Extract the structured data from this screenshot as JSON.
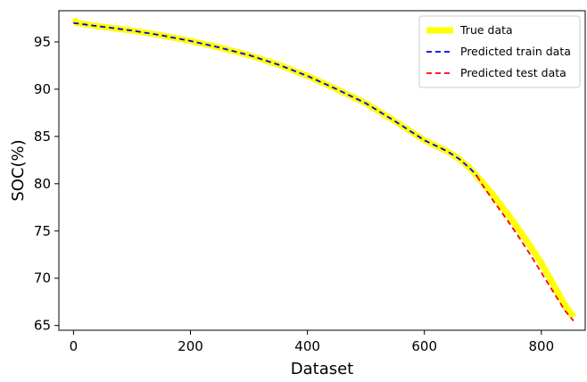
{
  "chart_data": {
    "type": "line",
    "xlabel": "Dataset",
    "ylabel": "SOC(%)",
    "xlim": [
      -25,
      875
    ],
    "ylim": [
      64.5,
      98.3
    ],
    "xticks": [
      0,
      200,
      400,
      600,
      800
    ],
    "yticks": [
      65,
      70,
      75,
      80,
      85,
      90,
      95
    ],
    "grid": false,
    "legend_position": "top-right",
    "series": [
      {
        "name": "True data",
        "color": "#ffff00",
        "style": "solid-thick",
        "x": [
          0,
          5,
          50,
          100,
          150,
          200,
          250,
          300,
          350,
          400,
          450,
          500,
          550,
          600,
          640,
          660,
          680,
          700,
          720,
          740,
          760,
          780,
          800,
          820,
          840,
          855
        ],
        "y": [
          97.4,
          97.0,
          96.6,
          96.2,
          95.7,
          95.1,
          94.4,
          93.6,
          92.6,
          91.4,
          90.0,
          88.5,
          86.6,
          84.6,
          83.4,
          82.6,
          81.5,
          80.1,
          78.6,
          77.0,
          75.3,
          73.5,
          71.6,
          69.4,
          67.2,
          65.9
        ]
      },
      {
        "name": "Predicted train data",
        "color": "#0000ff",
        "style": "dashed",
        "x": [
          0,
          50,
          100,
          150,
          200,
          250,
          300,
          350,
          400,
          450,
          500,
          550,
          600,
          640,
          660,
          680,
          690
        ],
        "y": [
          97.0,
          96.6,
          96.2,
          95.7,
          95.1,
          94.4,
          93.6,
          92.6,
          91.4,
          90.0,
          88.5,
          86.6,
          84.6,
          83.4,
          82.6,
          81.5,
          80.8
        ]
      },
      {
        "name": "Predicted test data",
        "color": "#ff0000",
        "style": "dashed",
        "x": [
          690,
          700,
          720,
          740,
          760,
          780,
          800,
          820,
          840,
          855
        ],
        "y": [
          80.8,
          79.8,
          78.0,
          76.3,
          74.5,
          72.6,
          70.6,
          68.6,
          66.6,
          65.5
        ]
      }
    ]
  }
}
